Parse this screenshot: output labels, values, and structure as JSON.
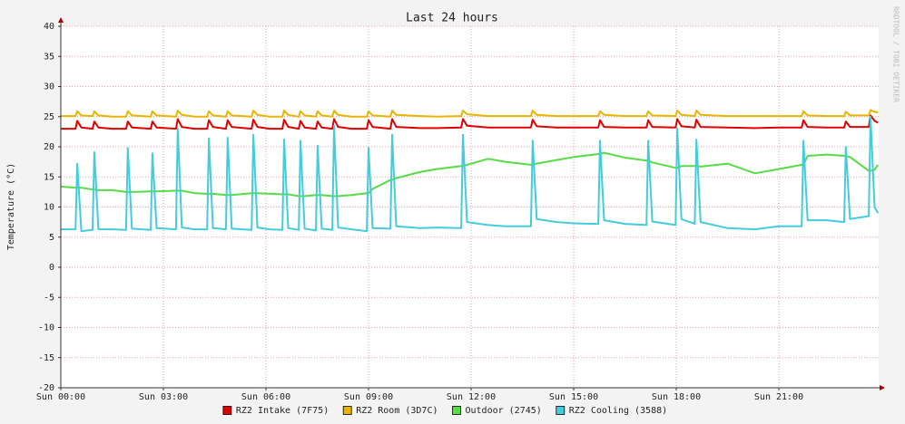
{
  "chart_data": {
    "type": "line",
    "title": "Last 24 hours",
    "y_label": "Temperature (°C)",
    "watermark": "RRDTOOL / TOBI OETIKER",
    "legend": "bottom",
    "grid": true,
    "xlim": [
      0,
      23.92
    ],
    "ylim": [
      -20,
      40
    ],
    "xticks": [
      {
        "value": 0,
        "label": "Sun 00:00"
      },
      {
        "value": 3,
        "label": "Sun 03:00"
      },
      {
        "value": 6,
        "label": "Sun 06:00"
      },
      {
        "value": 9,
        "label": "Sun 09:00"
      },
      {
        "value": 12,
        "label": "Sun 12:00"
      },
      {
        "value": 15,
        "label": "Sun 15:00"
      },
      {
        "value": 18,
        "label": "Sun 18:00"
      },
      {
        "value": 21,
        "label": "Sun 21:00"
      }
    ],
    "yticks": [
      -20,
      -15,
      -10,
      -5,
      0,
      5,
      10,
      15,
      20,
      25,
      30,
      35,
      40
    ],
    "x": [
      0,
      0.43,
      0.48,
      0.6,
      0.93,
      0.98,
      1.1,
      1.5,
      1.91,
      1.96,
      2.08,
      2.63,
      2.68,
      2.8,
      3.37,
      3.42,
      3.54,
      3.9,
      4.28,
      4.33,
      4.45,
      4.83,
      4.88,
      5.0,
      5.58,
      5.63,
      5.75,
      6.1,
      6.48,
      6.53,
      6.65,
      6.96,
      7.01,
      7.13,
      7.46,
      7.51,
      7.63,
      7.94,
      7.99,
      8.11,
      8.5,
      8.95,
      9.0,
      9.12,
      9.64,
      9.69,
      9.81,
      10.5,
      11.0,
      11.71,
      11.76,
      11.88,
      12.5,
      13.0,
      13.75,
      13.8,
      13.92,
      14.5,
      15.0,
      15.72,
      15.77,
      15.89,
      16.5,
      17.13,
      17.18,
      17.3,
      17.98,
      18.03,
      18.15,
      18.54,
      18.59,
      18.71,
      19.5,
      20.3,
      21.0,
      21.67,
      21.72,
      21.84,
      22.4,
      22.91,
      22.96,
      23.08,
      23.63,
      23.68,
      23.8,
      23.9
    ],
    "series": [
      {
        "name": "RZ2 Intake (7F75)",
        "color": "#e00000",
        "values": [
          23.0,
          23.0,
          24.3,
          23.2,
          23.0,
          24.2,
          23.2,
          23.0,
          23.0,
          24.2,
          23.2,
          23.0,
          24.2,
          23.2,
          23.0,
          24.6,
          23.3,
          23.0,
          23.0,
          24.4,
          23.3,
          23.0,
          24.4,
          23.3,
          23.0,
          24.5,
          23.3,
          23.0,
          23.0,
          24.5,
          23.3,
          23.0,
          24.3,
          23.2,
          23.0,
          24.2,
          23.2,
          23.0,
          24.6,
          23.3,
          23.0,
          23.0,
          24.4,
          23.3,
          23.0,
          24.6,
          23.3,
          23.1,
          23.1,
          23.2,
          24.6,
          23.5,
          23.2,
          23.2,
          23.2,
          24.5,
          23.4,
          23.2,
          23.2,
          23.2,
          24.4,
          23.3,
          23.2,
          23.2,
          24.4,
          23.3,
          23.2,
          24.6,
          23.4,
          23.2,
          24.5,
          23.3,
          23.2,
          23.1,
          23.2,
          23.2,
          24.4,
          23.3,
          23.2,
          23.2,
          24.2,
          23.3,
          23.3,
          25.2,
          24.3,
          24.0
        ]
      },
      {
        "name": "RZ2 Room (3D7C)",
        "color": "#e8b400",
        "values": [
          25.1,
          25.1,
          25.9,
          25.2,
          25.1,
          25.9,
          25.2,
          25.0,
          25.0,
          25.9,
          25.2,
          25.0,
          25.9,
          25.2,
          25.0,
          26.0,
          25.3,
          25.0,
          25.0,
          25.9,
          25.2,
          25.0,
          25.9,
          25.2,
          25.0,
          26.0,
          25.3,
          25.0,
          25.0,
          26.0,
          25.3,
          25.0,
          25.9,
          25.2,
          25.0,
          25.9,
          25.2,
          25.0,
          26.0,
          25.3,
          25.0,
          25.0,
          25.9,
          25.2,
          25.0,
          26.0,
          25.3,
          25.1,
          25.0,
          25.1,
          26.0,
          25.4,
          25.1,
          25.1,
          25.1,
          26.0,
          25.3,
          25.1,
          25.1,
          25.1,
          25.9,
          25.3,
          25.1,
          25.1,
          25.9,
          25.2,
          25.1,
          26.0,
          25.3,
          25.1,
          26.0,
          25.3,
          25.1,
          25.1,
          25.1,
          25.1,
          25.9,
          25.2,
          25.1,
          25.1,
          25.8,
          25.2,
          25.2,
          26.1,
          25.8,
          25.7
        ]
      },
      {
        "name": "Outdoor (2745)",
        "color": "#55dd44",
        "values": [
          13.4,
          13.2,
          13.2,
          13.2,
          12.9,
          12.9,
          12.8,
          12.8,
          12.5,
          12.5,
          12.5,
          12.6,
          12.6,
          12.6,
          12.7,
          12.7,
          12.7,
          12.3,
          12.2,
          12.2,
          12.2,
          12.0,
          12.0,
          12.0,
          12.3,
          12.3,
          12.3,
          12.2,
          12.1,
          12.1,
          12.1,
          11.8,
          11.8,
          11.8,
          12.0,
          12.0,
          12.0,
          11.8,
          11.8,
          11.8,
          12.0,
          12.3,
          12.3,
          13.0,
          14.5,
          14.5,
          14.8,
          15.8,
          16.3,
          16.8,
          16.8,
          17.0,
          18.0,
          17.5,
          17.0,
          17.0,
          17.2,
          17.8,
          18.3,
          18.8,
          18.8,
          19.0,
          18.2,
          17.7,
          17.7,
          17.4,
          16.5,
          16.5,
          16.8,
          16.8,
          16.8,
          16.7,
          17.2,
          15.6,
          16.3,
          17.0,
          17.0,
          18.5,
          18.7,
          18.5,
          18.5,
          18.3,
          16.0,
          16.0,
          16.2,
          17.0
        ]
      },
      {
        "name": "RZ2 Cooling (3588)",
        "color": "#44ccdd",
        "values": [
          6.3,
          6.3,
          17.2,
          6.0,
          6.2,
          19.1,
          6.3,
          6.3,
          6.2,
          19.8,
          6.4,
          6.2,
          18.9,
          6.5,
          6.3,
          23.0,
          6.6,
          6.3,
          6.3,
          21.4,
          6.5,
          6.3,
          21.5,
          6.4,
          6.2,
          22.0,
          6.6,
          6.3,
          6.2,
          21.2,
          6.5,
          6.2,
          21.0,
          6.4,
          6.1,
          20.2,
          6.4,
          6.2,
          23.5,
          6.6,
          6.3,
          6.0,
          19.8,
          6.5,
          6.4,
          22.0,
          6.8,
          6.5,
          6.6,
          6.5,
          22.0,
          7.5,
          7.0,
          6.8,
          6.8,
          21.0,
          8.0,
          7.5,
          7.3,
          7.2,
          21.0,
          7.8,
          7.2,
          7.0,
          21.0,
          7.6,
          7.0,
          23.0,
          8.0,
          7.2,
          21.2,
          7.5,
          6.5,
          6.3,
          6.8,
          6.8,
          21.0,
          7.8,
          7.8,
          7.5,
          20.0,
          8.0,
          8.5,
          25.0,
          10.0,
          9.0
        ]
      }
    ]
  }
}
